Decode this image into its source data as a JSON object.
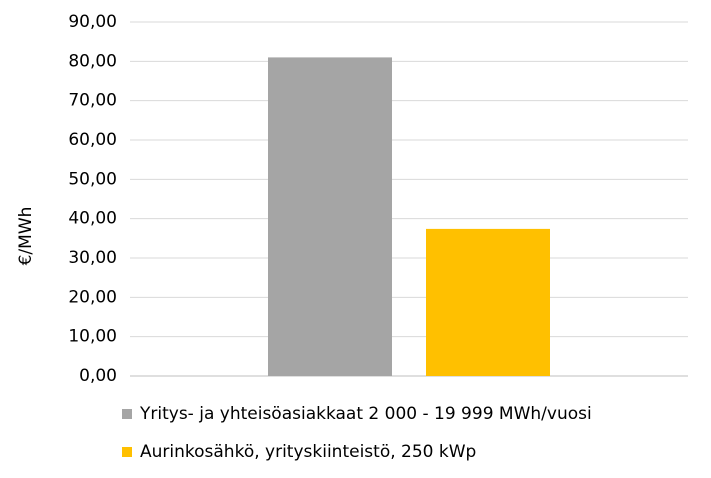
{
  "chart_data": {
    "type": "bar",
    "categories": [
      null
    ],
    "series": [
      {
        "name": "Yritys- ja yhteisöasiakkaat 2 000 - 19 999 MWh/vuosi",
        "color": "#a5a5a5",
        "values": [
          81
        ]
      },
      {
        "name": "Aurinkosähkö, yrityskiinteistö, 250 kWp",
        "color": "#ffc000",
        "values": [
          37.4
        ]
      }
    ],
    "y_label": "€/MWh",
    "ylim": [
      0,
      90
    ],
    "yticks": [
      {
        "value": 0,
        "label": "0,00"
      },
      {
        "value": 10,
        "label": "10,00"
      },
      {
        "value": 20,
        "label": "20,00"
      },
      {
        "value": 30,
        "label": "30,00"
      },
      {
        "value": 40,
        "label": "40,00"
      },
      {
        "value": 50,
        "label": "50,00"
      },
      {
        "value": 60,
        "label": "60,00"
      },
      {
        "value": 70,
        "label": "70,00"
      },
      {
        "value": 80,
        "label": "80,00"
      },
      {
        "value": 90,
        "label": "90,00"
      }
    ],
    "grid": true,
    "legend": "bottom"
  }
}
